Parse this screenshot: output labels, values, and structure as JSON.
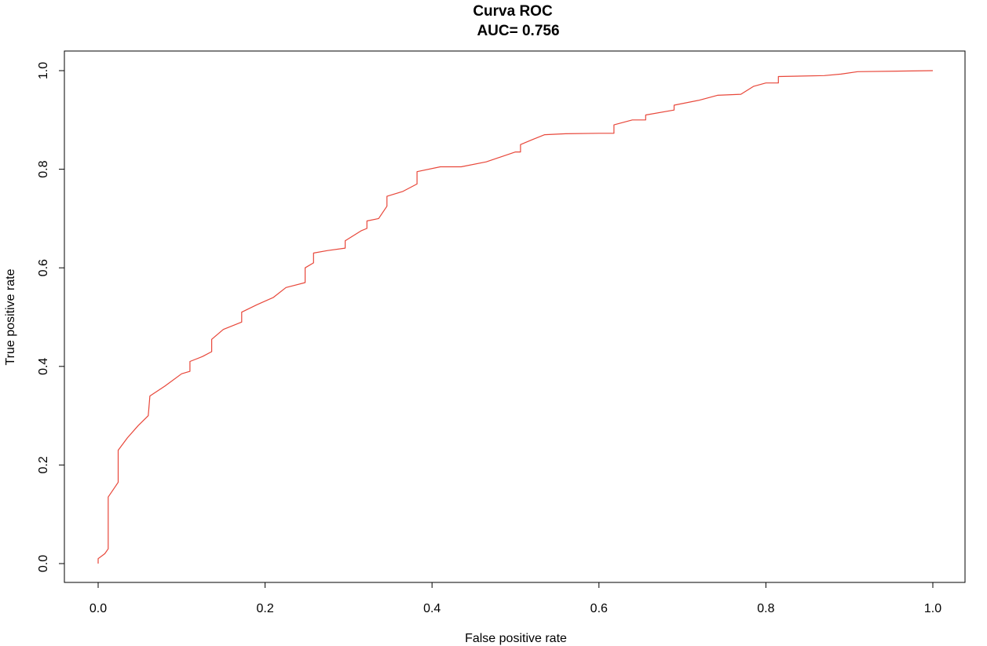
{
  "chart_data": {
    "type": "line",
    "title": "Curva ROC",
    "subtitle": "AUC= 0.756",
    "xlabel": "False positive rate",
    "ylabel": "True positive rate",
    "xlim": [
      0,
      1
    ],
    "ylim": [
      0,
      1
    ],
    "x_ticks": [
      "0.0",
      "0.2",
      "0.4",
      "0.6",
      "0.8",
      "1.0"
    ],
    "y_ticks": [
      "0.0",
      "0.2",
      "0.4",
      "0.6",
      "0.8",
      "1.0"
    ],
    "grid": false,
    "legend": "none",
    "series": [
      {
        "color": "#e8473a",
        "points": [
          [
            0.0,
            0.0
          ],
          [
            0.0,
            0.01
          ],
          [
            0.008,
            0.02
          ],
          [
            0.012,
            0.03
          ],
          [
            0.012,
            0.135
          ],
          [
            0.02,
            0.155
          ],
          [
            0.024,
            0.165
          ],
          [
            0.024,
            0.23
          ],
          [
            0.035,
            0.255
          ],
          [
            0.048,
            0.28
          ],
          [
            0.06,
            0.3
          ],
          [
            0.062,
            0.34
          ],
          [
            0.08,
            0.36
          ],
          [
            0.1,
            0.385
          ],
          [
            0.11,
            0.39
          ],
          [
            0.11,
            0.41
          ],
          [
            0.125,
            0.42
          ],
          [
            0.136,
            0.43
          ],
          [
            0.136,
            0.455
          ],
          [
            0.15,
            0.475
          ],
          [
            0.172,
            0.49
          ],
          [
            0.172,
            0.51
          ],
          [
            0.19,
            0.525
          ],
          [
            0.21,
            0.54
          ],
          [
            0.225,
            0.56
          ],
          [
            0.248,
            0.57
          ],
          [
            0.248,
            0.6
          ],
          [
            0.258,
            0.61
          ],
          [
            0.258,
            0.63
          ],
          [
            0.275,
            0.635
          ],
          [
            0.296,
            0.64
          ],
          [
            0.296,
            0.655
          ],
          [
            0.315,
            0.675
          ],
          [
            0.322,
            0.68
          ],
          [
            0.322,
            0.695
          ],
          [
            0.336,
            0.7
          ],
          [
            0.346,
            0.725
          ],
          [
            0.346,
            0.745
          ],
          [
            0.365,
            0.755
          ],
          [
            0.382,
            0.77
          ],
          [
            0.382,
            0.795
          ],
          [
            0.41,
            0.805
          ],
          [
            0.435,
            0.805
          ],
          [
            0.465,
            0.815
          ],
          [
            0.5,
            0.835
          ],
          [
            0.506,
            0.835
          ],
          [
            0.506,
            0.85
          ],
          [
            0.52,
            0.86
          ],
          [
            0.535,
            0.87
          ],
          [
            0.56,
            0.872
          ],
          [
            0.6,
            0.873
          ],
          [
            0.618,
            0.873
          ],
          [
            0.618,
            0.89
          ],
          [
            0.64,
            0.9
          ],
          [
            0.656,
            0.9
          ],
          [
            0.656,
            0.91
          ],
          [
            0.69,
            0.92
          ],
          [
            0.69,
            0.93
          ],
          [
            0.72,
            0.94
          ],
          [
            0.742,
            0.95
          ],
          [
            0.77,
            0.952
          ],
          [
            0.785,
            0.968
          ],
          [
            0.8,
            0.975
          ],
          [
            0.815,
            0.975
          ],
          [
            0.815,
            0.988
          ],
          [
            0.87,
            0.99
          ],
          [
            0.89,
            0.993
          ],
          [
            0.91,
            0.998
          ],
          [
            1.0,
            1.0
          ]
        ]
      }
    ]
  }
}
